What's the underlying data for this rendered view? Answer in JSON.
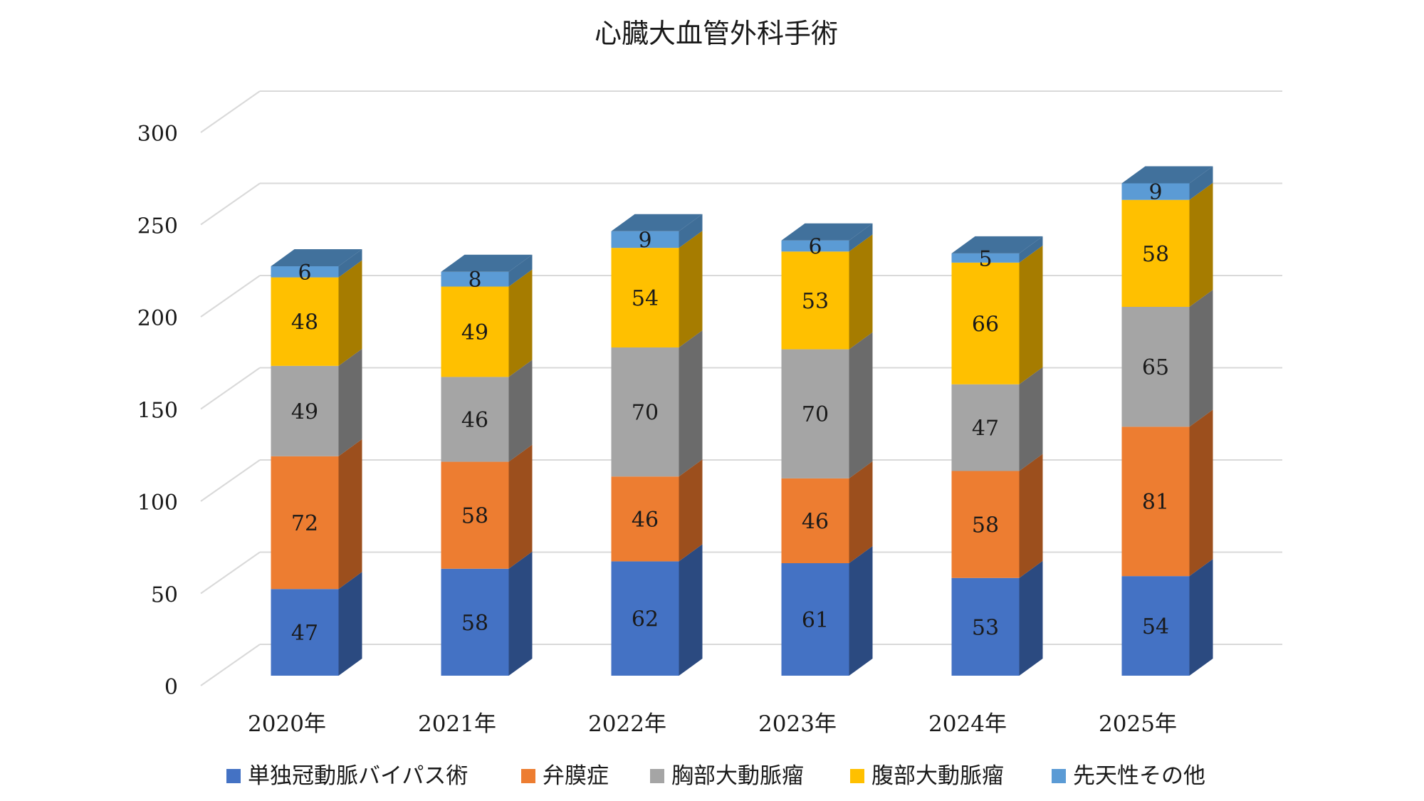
{
  "chart_data": {
    "type": "bar",
    "stacked": true,
    "three_d": true,
    "title": "心臓大血管外科手術",
    "categories": [
      "2020年",
      "2021年",
      "2022年",
      "2023年",
      "2024年",
      "2025年"
    ],
    "series": [
      {
        "name": "単独冠動脈バイパス術",
        "color": "#4472C4",
        "side": "#2B4A80",
        "values": [
          47,
          58,
          62,
          61,
          53,
          54
        ]
      },
      {
        "name": "弁膜症",
        "color": "#ED7D31",
        "side": "#9C4F1D",
        "values": [
          72,
          58,
          46,
          46,
          58,
          81
        ]
      },
      {
        "name": "胸部大動脈瘤",
        "color": "#A5A5A5",
        "side": "#6B6B6B",
        "values": [
          49,
          46,
          70,
          70,
          47,
          65
        ]
      },
      {
        "name": "腹部大動脈瘤",
        "color": "#FFC000",
        "side": "#A67C00",
        "values": [
          48,
          49,
          54,
          53,
          66,
          58
        ]
      },
      {
        "name": "先天性その他",
        "color": "#5B9BD5",
        "side": "#3F6E98",
        "top": "#41719C",
        "values": [
          6,
          8,
          9,
          6,
          5,
          9
        ]
      }
    ],
    "yticks": [
      "0",
      "50",
      "100",
      "150",
      "200",
      "250",
      "300"
    ],
    "ylim": [
      0,
      300
    ],
    "grid": true,
    "data_labels": true,
    "legend_position": "bottom"
  }
}
